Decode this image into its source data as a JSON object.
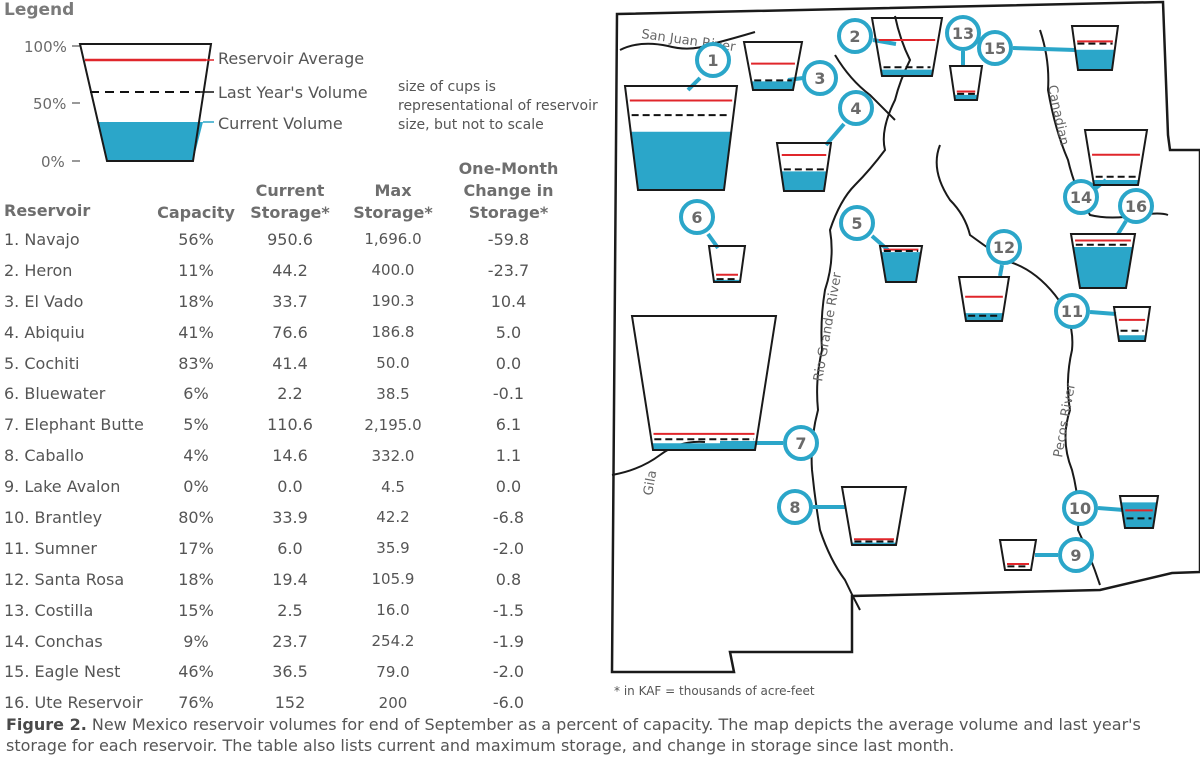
{
  "legend": {
    "title": "Legend",
    "pct_labels": [
      "100%",
      "50%",
      "0%"
    ],
    "items": [
      "Reservoir Average",
      "Last Year's Volume",
      "Current Volume"
    ],
    "note": "size of cups is representational of reservoir size, but not to scale"
  },
  "table": {
    "headers": [
      "Reservoir",
      "Capacity",
      "Current Storage*",
      "Max Storage*",
      "One-Month Change in Storage*"
    ],
    "rows": [
      {
        "name": "1. Navajo",
        "capacity": "56%",
        "current": "950.6",
        "max": "1,696.0",
        "change": "-59.8"
      },
      {
        "name": "2. Heron",
        "capacity": "11%",
        "current": "44.2",
        "max": "400.0",
        "change": "-23.7"
      },
      {
        "name": "3. El Vado",
        "capacity": "18%",
        "current": "33.7",
        "max": "190.3",
        "change": "10.4"
      },
      {
        "name": "4. Abiquiu",
        "capacity": "41%",
        "current": "76.6",
        "max": "186.8",
        "change": "5.0"
      },
      {
        "name": "5. Cochiti",
        "capacity": "83%",
        "current": "41.4",
        "max": "50.0",
        "change": "0.0"
      },
      {
        "name": "6. Bluewater",
        "capacity": "6%",
        "current": "2.2",
        "max": "38.5",
        "change": "-0.1"
      },
      {
        "name": "7. Elephant Butte",
        "capacity": "5%",
        "current": "110.6",
        "max": "2,195.0",
        "change": "6.1"
      },
      {
        "name": "8. Caballo",
        "capacity": "4%",
        "current": "14.6",
        "max": "332.0",
        "change": "1.1"
      },
      {
        "name": "9. Lake Avalon",
        "capacity": "0%",
        "current": "0.0",
        "max": "4.5",
        "change": "0.0"
      },
      {
        "name": "10. Brantley",
        "capacity": "80%",
        "current": "33.9",
        "max": "42.2",
        "change": "-6.8"
      },
      {
        "name": "11. Sumner",
        "capacity": "17%",
        "current": "6.0",
        "max": "35.9",
        "change": "-2.0"
      },
      {
        "name": "12. Santa Rosa",
        "capacity": "18%",
        "current": "19.4",
        "max": "105.9",
        "change": "0.8"
      },
      {
        "name": "13. Costilla",
        "capacity": "15%",
        "current": "2.5",
        "max": "16.0",
        "change": "-1.5"
      },
      {
        "name": "14. Conchas",
        "capacity": "9%",
        "current": "23.7",
        "max": "254.2",
        "change": "-1.9"
      },
      {
        "name": "15. Eagle Nest",
        "capacity": "46%",
        "current": "36.5",
        "max": "79.0",
        "change": "-2.0"
      },
      {
        "name": "16. Ute Reservoir",
        "capacity": "76%",
        "current": "152",
        "max": "200",
        "change": "-6.0"
      }
    ]
  },
  "map": {
    "rivers": [
      "San Juan River",
      "Rio Grande River",
      "Canadian",
      "Pecos River",
      "Gila"
    ],
    "markers": [
      "1",
      "2",
      "3",
      "4",
      "5",
      "6",
      "7",
      "8",
      "9",
      "10",
      "11",
      "12",
      "13",
      "14",
      "15",
      "16"
    ],
    "cups": [
      {
        "id": "1",
        "current": 0.56,
        "average": 0.86,
        "last_year": 0.72
      },
      {
        "id": "2",
        "current": 0.11,
        "average": 0.62,
        "last_year": 0.15
      },
      {
        "id": "3",
        "current": 0.18,
        "average": 0.55,
        "last_year": 0.2
      },
      {
        "id": "4",
        "current": 0.41,
        "average": 0.75,
        "last_year": 0.45
      },
      {
        "id": "5",
        "current": 0.83,
        "average": 0.9,
        "last_year": 0.86
      },
      {
        "id": "6",
        "current": 0.06,
        "average": 0.2,
        "last_year": 0.08
      },
      {
        "id": "7",
        "current": 0.05,
        "average": 0.12,
        "last_year": 0.08
      },
      {
        "id": "8",
        "current": 0.04,
        "average": 0.1,
        "last_year": 0.06
      },
      {
        "id": "9",
        "current": 0.0,
        "average": 0.2,
        "last_year": 0.12
      },
      {
        "id": "10",
        "current": 0.8,
        "average": 0.55,
        "last_year": 0.3
      },
      {
        "id": "11",
        "current": 0.17,
        "average": 0.62,
        "last_year": 0.3
      },
      {
        "id": "12",
        "current": 0.18,
        "average": 0.55,
        "last_year": 0.12
      },
      {
        "id": "13",
        "current": 0.15,
        "average": 0.25,
        "last_year": 0.18
      },
      {
        "id": "14",
        "current": 0.09,
        "average": 0.55,
        "last_year": 0.15
      },
      {
        "id": "15",
        "current": 0.46,
        "average": 0.65,
        "last_year": 0.6
      },
      {
        "id": "16",
        "current": 0.76,
        "average": 0.88,
        "last_year": 0.8
      }
    ]
  },
  "colors": {
    "current": "#2ba6c9",
    "average": "#e0262b",
    "last_year": "#111111",
    "callout": "#2ba6c9"
  },
  "footnote": "* in KAF = thousands of acre-feet",
  "caption": {
    "label": "Figure 2.",
    "text": " New Mexico reservoir volumes for end of September as a percent of capacity. The map depicts the average volume and last year's storage for each reservoir. The table also lists current and maximum storage, and change in storage since last month."
  }
}
